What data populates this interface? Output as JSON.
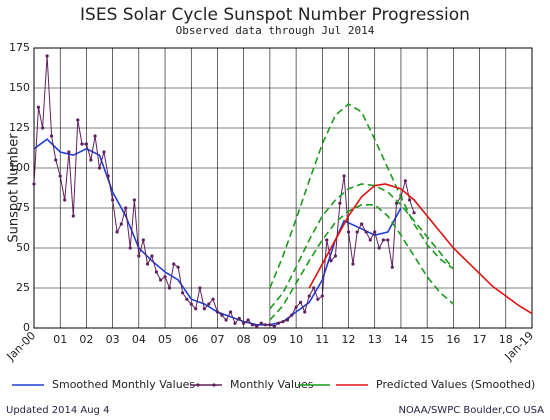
{
  "chart_data": {
    "type": "line",
    "title": "ISES Solar Cycle Sunspot Number Progression",
    "subtitle": "Observed data through Jul 2014",
    "y_label": "Sunspot Number",
    "footer_left": "Updated 2014 Aug  4",
    "footer_right": "NOAA/SWPC Boulder,CO USA",
    "xlim": [
      2000,
      2019
    ],
    "ylim": [
      0,
      175
    ],
    "grid": true,
    "yticks": [
      0,
      25,
      50,
      75,
      100,
      125,
      150,
      175
    ],
    "xticks": [
      {
        "value": 2000,
        "label": "Jan-00"
      },
      {
        "value": 2001,
        "label": "01"
      },
      {
        "value": 2002,
        "label": "02"
      },
      {
        "value": 2003,
        "label": "03"
      },
      {
        "value": 2004,
        "label": "04"
      },
      {
        "value": 2005,
        "label": "05"
      },
      {
        "value": 2006,
        "label": "06"
      },
      {
        "value": 2007,
        "label": "07"
      },
      {
        "value": 2008,
        "label": "08"
      },
      {
        "value": 2009,
        "label": "09"
      },
      {
        "value": 2010,
        "label": "10"
      },
      {
        "value": 2011,
        "label": "11"
      },
      {
        "value": 2012,
        "label": "12"
      },
      {
        "value": 2013,
        "label": "13"
      },
      {
        "value": 2014,
        "label": "14"
      },
      {
        "value": 2015,
        "label": "15"
      },
      {
        "value": 2016,
        "label": "16"
      },
      {
        "value": 2017,
        "label": "17"
      },
      {
        "value": 2018,
        "label": "18"
      },
      {
        "value": 2019,
        "label": "Jan-19"
      }
    ],
    "series": [
      {
        "name": "Smoothed Monthly Values",
        "color": "#1f3fd0",
        "style": "solid",
        "x": [
          2000.0,
          2000.5,
          2001.0,
          2001.5,
          2002.0,
          2002.5,
          2003.0,
          2003.5,
          2004.0,
          2004.5,
          2005.0,
          2005.5,
          2006.0,
          2006.5,
          2007.0,
          2007.5,
          2008.0,
          2008.5,
          2009.0,
          2009.5,
          2010.0,
          2010.5,
          2011.0,
          2011.5,
          2011.83,
          2012.5,
          2013.0,
          2013.5,
          2014.0
        ],
        "values": [
          112,
          118,
          110,
          108,
          112,
          108,
          85,
          70,
          50,
          42,
          35,
          30,
          18,
          15,
          10,
          7,
          4,
          2,
          2,
          4,
          10,
          16,
          30,
          55,
          67,
          62,
          58,
          60,
          75
        ]
      },
      {
        "name": "Monthly Values",
        "color": "#602060",
        "style": "markers",
        "x": [
          2000.0,
          2000.17,
          2000.33,
          2000.5,
          2000.67,
          2000.83,
          2001.0,
          2001.17,
          2001.33,
          2001.5,
          2001.67,
          2001.83,
          2002.0,
          2002.17,
          2002.33,
          2002.5,
          2002.67,
          2002.83,
          2003.0,
          2003.17,
          2003.33,
          2003.5,
          2003.67,
          2003.83,
          2004.0,
          2004.17,
          2004.33,
          2004.5,
          2004.67,
          2004.83,
          2005.0,
          2005.17,
          2005.33,
          2005.5,
          2005.67,
          2005.83,
          2006.0,
          2006.17,
          2006.33,
          2006.5,
          2006.67,
          2006.83,
          2007.0,
          2007.17,
          2007.33,
          2007.5,
          2007.67,
          2007.83,
          2008.0,
          2008.17,
          2008.33,
          2008.5,
          2008.67,
          2008.83,
          2009.0,
          2009.17,
          2009.33,
          2009.5,
          2009.67,
          2009.83,
          2010.0,
          2010.17,
          2010.33,
          2010.5,
          2010.67,
          2010.83,
          2011.0,
          2011.17,
          2011.33,
          2011.5,
          2011.67,
          2011.83,
          2012.0,
          2012.17,
          2012.33,
          2012.5,
          2012.67,
          2012.83,
          2013.0,
          2013.17,
          2013.33,
          2013.5,
          2013.67,
          2013.83,
          2014.0,
          2014.17,
          2014.33,
          2014.5
        ],
        "values": [
          90,
          138,
          125,
          170,
          120,
          105,
          95,
          80,
          110,
          70,
          130,
          115,
          115,
          105,
          120,
          100,
          110,
          95,
          80,
          60,
          65,
          75,
          50,
          80,
          45,
          55,
          40,
          45,
          35,
          30,
          32,
          25,
          40,
          38,
          22,
          18,
          15,
          12,
          25,
          12,
          15,
          18,
          10,
          8,
          5,
          10,
          3,
          6,
          3,
          5,
          2,
          1,
          3,
          2,
          2,
          1,
          3,
          4,
          5,
          8,
          13,
          16,
          10,
          20,
          25,
          18,
          20,
          55,
          42,
          45,
          78,
          95,
          60,
          40,
          60,
          65,
          60,
          55,
          60,
          50,
          55,
          55,
          38,
          78,
          82,
          92,
          80,
          72
        ]
      },
      {
        "color": "#1a9a1a",
        "style": "dashed",
        "x": [
          2009,
          2009.5,
          2010,
          2010.5,
          2011,
          2011.5,
          2012,
          2012.5,
          2013,
          2013.5,
          2014,
          2014.5,
          2015,
          2015.5,
          2016
        ],
        "values": [
          25,
          45,
          68,
          92,
          115,
          133,
          140,
          135,
          118,
          100,
          82,
          65,
          52,
          43,
          37
        ]
      },
      {
        "color": "#1a9a1a",
        "style": "dashed",
        "x": [
          2009,
          2009.5,
          2010,
          2010.5,
          2011,
          2011.5,
          2012,
          2012.5,
          2013,
          2013.5,
          2014,
          2014.5,
          2015,
          2015.5,
          2016
        ],
        "values": [
          12,
          22,
          38,
          55,
          70,
          80,
          87,
          90,
          89,
          85,
          77,
          67,
          57,
          47,
          37
        ]
      },
      {
        "color": "#1a9a1a",
        "style": "dashed",
        "x": [
          2009,
          2009.5,
          2010,
          2010.5,
          2011,
          2011.5,
          2012,
          2012.5,
          2013,
          2013.5,
          2014,
          2014.5,
          2015,
          2015.5,
          2016
        ],
        "values": [
          5,
          14,
          28,
          42,
          55,
          66,
          73,
          77,
          77,
          70,
          58,
          45,
          32,
          22,
          15
        ]
      },
      {
        "name": "Predicted Values (Smoothed)",
        "color": "#e01010",
        "style": "solid",
        "x": [
          2010.5,
          2011,
          2011.5,
          2012,
          2012.5,
          2013,
          2013.4,
          2014,
          2014.5,
          2015,
          2015.5,
          2016,
          2016.5,
          2017,
          2017.5,
          2018,
          2018.5,
          2019
        ],
        "values": [
          25,
          40,
          55,
          70,
          82,
          89,
          90,
          87,
          80,
          70,
          60,
          50,
          42,
          34,
          26,
          20,
          14,
          9
        ]
      }
    ]
  }
}
